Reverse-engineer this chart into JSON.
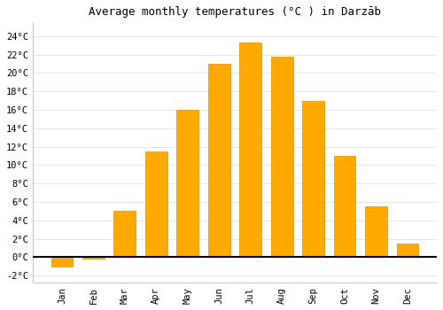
{
  "title": "Average monthly temperatures (°C ) in Darzāb",
  "months": [
    "Jan",
    "Feb",
    "Mar",
    "Apr",
    "May",
    "Jun",
    "Jul",
    "Aug",
    "Sep",
    "Oct",
    "Nov",
    "Dec"
  ],
  "values": [
    -1.0,
    -0.2,
    5.0,
    11.5,
    16.0,
    21.0,
    23.3,
    21.8,
    17.0,
    11.0,
    5.5,
    1.5
  ],
  "bar_color": "#FFAA00",
  "bar_edge_color": "#E09000",
  "background_color": "#FFFFFF",
  "grid_color": "#DDDDDD",
  "ylim": [
    -2.8,
    25.5
  ],
  "yticks": [
    -2,
    0,
    2,
    4,
    6,
    8,
    10,
    12,
    14,
    16,
    18,
    20,
    22,
    24
  ],
  "ytick_labels": [
    "-2°C",
    "0°C",
    "2°C",
    "4°C",
    "6°C",
    "8°C",
    "10°C",
    "12°C",
    "14°C",
    "16°C",
    "18°C",
    "20°C",
    "22°C",
    "24°C"
  ],
  "title_fontsize": 9,
  "tick_fontsize": 7.5,
  "figsize": [
    5.0,
    3.5
  ],
  "dpi": 100
}
